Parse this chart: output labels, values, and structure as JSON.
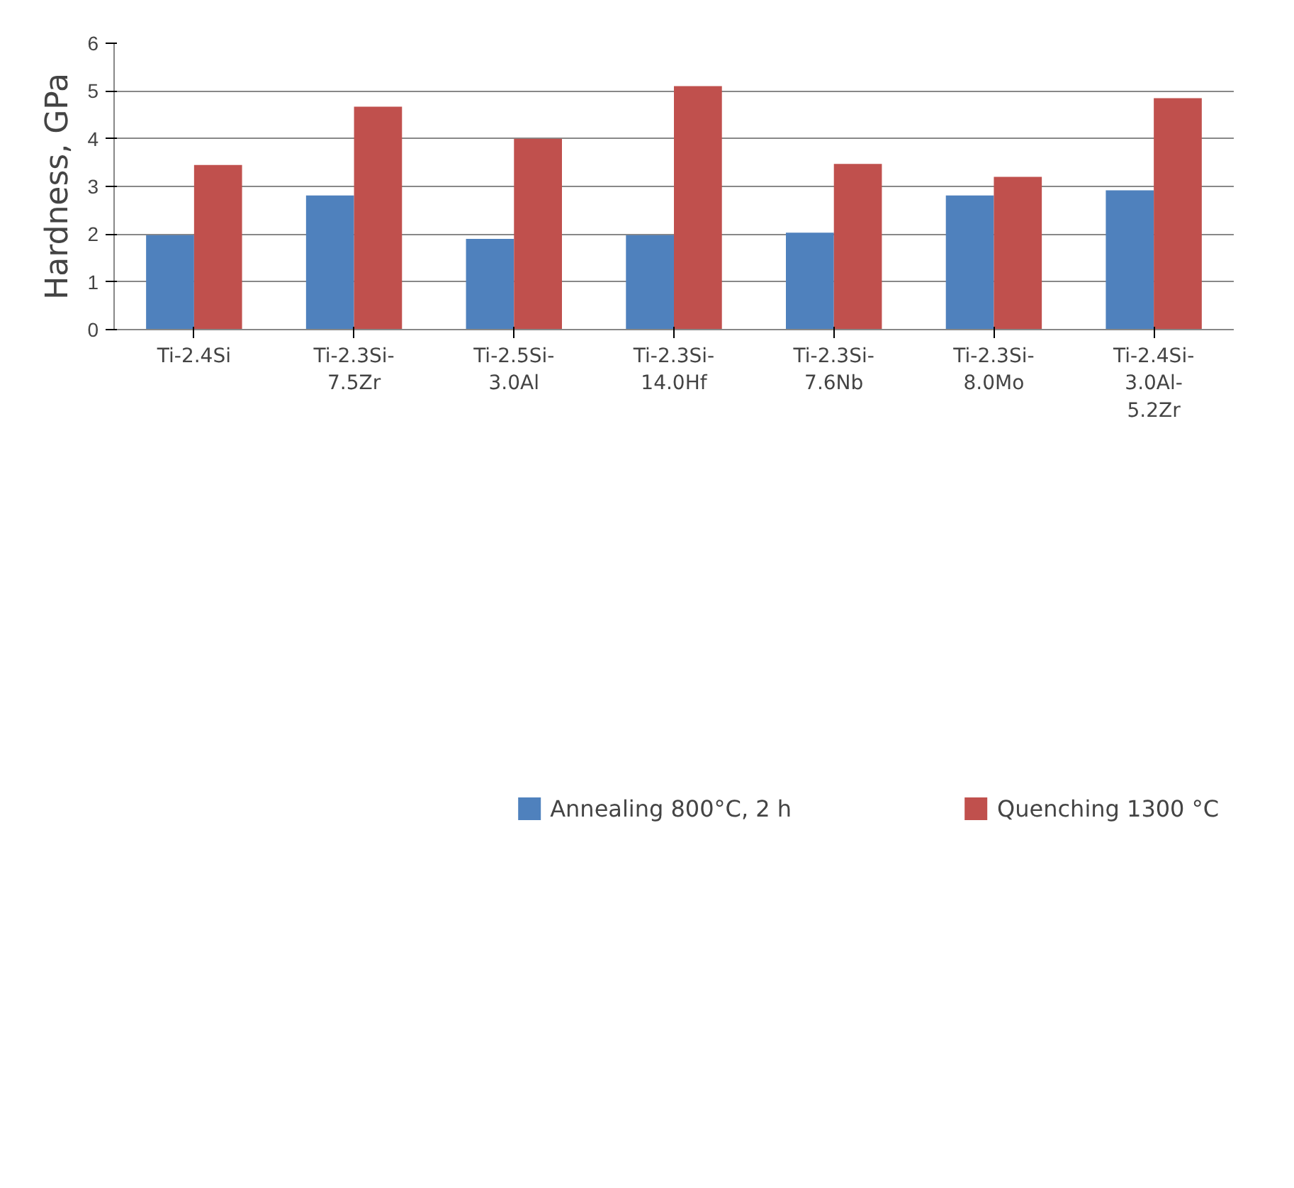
{
  "chart_data": {
    "type": "bar",
    "ylabel": "Hardness, GPa",
    "categories": [
      "Ti-2.4Si",
      "Ti-2.3Si-7.5Zr",
      "Ti-2.5Si-3.0Al",
      "Ti-2.3Si-14.0Hf",
      "Ti-2.3Si-7.6Nb",
      "Ti-2.3Si-8.0Mo",
      "Ti-2.4Si-3.0Al-5.2Zr"
    ],
    "series": [
      {
        "name": "Annealing 800°C, 2 h",
        "color": "#4f81bd",
        "values": [
          1.98,
          2.81,
          1.9,
          1.98,
          2.03,
          2.81,
          2.92
        ]
      },
      {
        "name": "Quenching 1300 °C",
        "color": "#c0504d",
        "values": [
          3.45,
          4.67,
          4.0,
          5.1,
          3.47,
          3.2,
          4.85
        ]
      }
    ],
    "ylim": [
      0,
      6
    ],
    "yticks": [
      0,
      1,
      2,
      3,
      4,
      5,
      6
    ],
    "grid": "y",
    "legend": "bottom"
  }
}
